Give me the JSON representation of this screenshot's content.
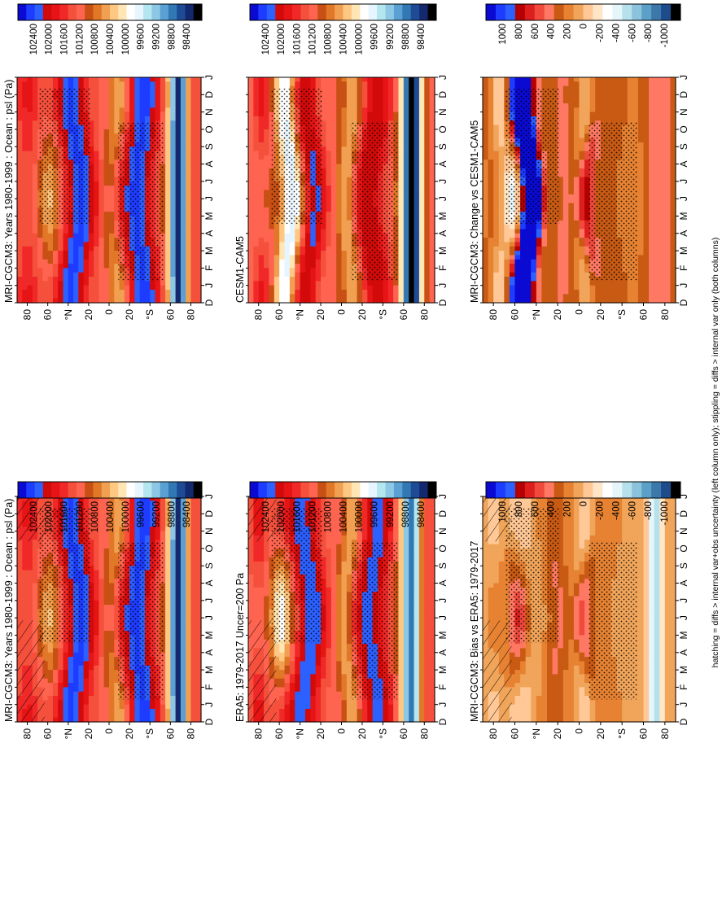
{
  "figure": {
    "footnote": "hatching = diffs > internal var+obs uncertainty (left column only); stippling = diffs > internal var only (both columns)"
  },
  "colors": {
    "abs_scale": [
      "#0a0ad2",
      "#1e3cff",
      "#2c60ff",
      "#d20a0a",
      "#e61414",
      "#f02828",
      "#f5503c",
      "#ff6450",
      "#c85014",
      "#e17828",
      "#f0a050",
      "#ffc882",
      "#ffe6b4",
      "#ffffff",
      "#e6f5ff",
      "#b4e6f0",
      "#8cc8e6",
      "#5aa0d2",
      "#3278b4",
      "#1e4b96",
      "#14286e",
      "#000000"
    ],
    "diff_scale": [
      "#0a0ad2",
      "#1e3cff",
      "#2c60ff",
      "#b40000",
      "#dc1e1e",
      "#f04a3c",
      "#ff7864",
      "#c85a14",
      "#e68232",
      "#f0a55a",
      "#ffc896",
      "#ffe6c8",
      "#ffffff",
      "#e6f5fa",
      "#b4e1eb",
      "#8cc3dc",
      "#5aa0c8",
      "#3c78aa",
      "#1e4b8c",
      "#000000"
    ]
  },
  "chart_data": [
    {
      "type": "heatmap",
      "title": "MRI-CGCM3: Years 1980-1999 : Ocean : psl (Pa)",
      "x_ticks": [
        "D",
        "J",
        "F",
        "M",
        "A",
        "M",
        "J",
        "J",
        "A",
        "S",
        "O",
        "N",
        "D",
        "J"
      ],
      "y_ticks": [
        "80",
        "60",
        "°N",
        "20",
        "0",
        "20",
        "°S",
        "60",
        "80"
      ],
      "colorbar_ticks": [
        "102400",
        "102000",
        "101600",
        "101200",
        "100800",
        "100400",
        "100000",
        "99600",
        "99200",
        "98800",
        "98400"
      ],
      "colorbar_range": [
        98200,
        102600
      ],
      "field": "mri",
      "hatching": true
    },
    {
      "type": "heatmap",
      "title": "MRI-CGCM3: Years 1980-1999 : Ocean : psl (Pa)",
      "x_ticks": [
        "D",
        "J",
        "F",
        "M",
        "A",
        "M",
        "J",
        "J",
        "A",
        "S",
        "O",
        "N",
        "D",
        "J"
      ],
      "y_ticks": [
        "80",
        "60",
        "°N",
        "20",
        "0",
        "20",
        "°S",
        "60",
        "80"
      ],
      "colorbar_ticks": [
        "102400",
        "102000",
        "101600",
        "101200",
        "100800",
        "100400",
        "100000",
        "99600",
        "99200",
        "98800",
        "98400"
      ],
      "colorbar_range": [
        98200,
        102600
      ],
      "field": "mri",
      "hatching": false
    },
    {
      "type": "heatmap",
      "title": "ERA5: 1979-2017 Uncer=200 Pa",
      "x_ticks": [
        "D",
        "J",
        "F",
        "M",
        "A",
        "M",
        "J",
        "J",
        "A",
        "S",
        "O",
        "N",
        "D",
        "J"
      ],
      "y_ticks": [
        "80",
        "60",
        "°N",
        "20",
        "0",
        "20",
        "°S",
        "60",
        "80"
      ],
      "colorbar_ticks": [
        "102400",
        "102000",
        "101600",
        "101200",
        "100800",
        "100400",
        "100000",
        "99600",
        "99200",
        "98800",
        "98400"
      ],
      "colorbar_range": [
        98200,
        102600
      ],
      "field": "era5",
      "hatching": true
    },
    {
      "type": "heatmap",
      "title": "CESM1-CAM5",
      "x_ticks": [
        "D",
        "J",
        "F",
        "M",
        "A",
        "M",
        "J",
        "J",
        "A",
        "S",
        "O",
        "N",
        "D",
        "J"
      ],
      "y_ticks": [
        "80",
        "60",
        "°N",
        "20",
        "0",
        "20",
        "°S",
        "60",
        "80"
      ],
      "colorbar_ticks": [
        "102400",
        "102000",
        "101600",
        "101200",
        "100800",
        "100400",
        "100000",
        "99600",
        "99200",
        "98800",
        "98400"
      ],
      "colorbar_range": [
        98200,
        102600
      ],
      "field": "cesm",
      "hatching": false
    },
    {
      "type": "heatmap",
      "title": "MRI-CGCM3: Bias vs ERA5: 1979-2017",
      "x_ticks": [
        "D",
        "J",
        "F",
        "M",
        "A",
        "M",
        "J",
        "J",
        "A",
        "S",
        "O",
        "N",
        "D",
        "J"
      ],
      "y_ticks": [
        "80",
        "60",
        "°N",
        "20",
        "0",
        "20",
        "°S",
        "60",
        "80"
      ],
      "colorbar_ticks": [
        "1000",
        "800",
        "600",
        "400",
        "200",
        "0",
        "-200",
        "-400",
        "-600",
        "-800",
        "-1000"
      ],
      "colorbar_range": [
        -1100,
        1100
      ],
      "field": "bias",
      "hatching": true
    },
    {
      "type": "heatmap",
      "title": "MRI-CGCM3: Change vs CESM1-CAM5",
      "x_ticks": [
        "D",
        "J",
        "F",
        "M",
        "A",
        "M",
        "J",
        "J",
        "A",
        "S",
        "O",
        "N",
        "D",
        "J"
      ],
      "y_ticks": [
        "80",
        "60",
        "°N",
        "20",
        "0",
        "20",
        "°S",
        "60",
        "80"
      ],
      "colorbar_ticks": [
        "1000",
        "800",
        "600",
        "400",
        "200",
        "0",
        "-200",
        "-400",
        "-600",
        "-800",
        "-1000"
      ],
      "colorbar_range": [
        -1100,
        1100
      ],
      "field": "change",
      "hatching": false
    }
  ]
}
